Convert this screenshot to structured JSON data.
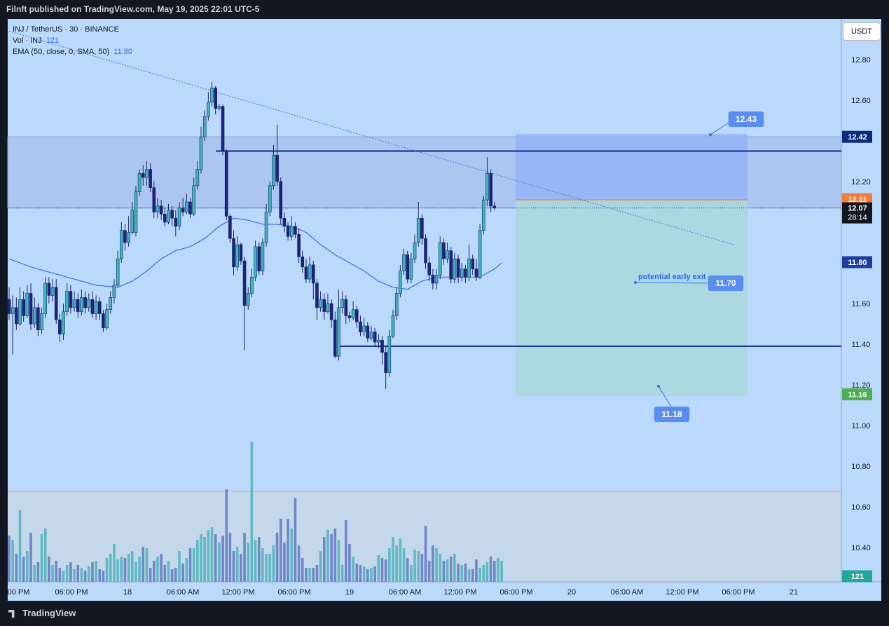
{
  "header": {
    "published": "Filnft published on TradingView.com, May 19, 2025 22:01 UTC-5"
  },
  "legend": {
    "symbol": "INJ / TetherUS · 30 · BINANCE",
    "vol_label": "Vol · INJ",
    "vol_value": "121",
    "ema_label": "EMA (50, close, 0, SMA, 50)",
    "ema_value": "11.80"
  },
  "currency_button": "USDT",
  "footer": {
    "brand": "TradingView"
  },
  "chart_data": {
    "type": "candlestick",
    "symbol": "INJ / TetherUS",
    "interval": "30",
    "exchange": "BINANCE",
    "y_axis": {
      "range": [
        10.26,
        13.04
      ],
      "ticks": [
        "12.80",
        "12.60",
        "12.20",
        "11.60",
        "11.40",
        "11.20",
        "11.00",
        "10.80",
        "10.60",
        "10.40"
      ]
    },
    "x_axis": {
      "ticks": [
        ":00 PM",
        "06:00 PM",
        "18",
        "06:00 AM",
        "12:00 PM",
        "06:00 PM",
        "19",
        "06:00 AM",
        "12:00 PM",
        "06:00 PM",
        "20",
        "06:00 AM",
        "12:00 PM",
        "06:00 PM",
        "21"
      ]
    },
    "price_labels": {
      "resistance": "12.42",
      "last_close_ref": "12.11",
      "current_price": "12.07",
      "countdown": "28:14",
      "ema": "11.80",
      "target_low": "11.16",
      "volume": "121"
    },
    "candles": [
      [
        11.62,
        11.55,
        11.68,
        11.52
      ],
      [
        11.55,
        11.58,
        11.64,
        11.35
      ],
      [
        11.58,
        11.5,
        11.63,
        11.47
      ],
      [
        11.5,
        11.62,
        11.68,
        11.49
      ],
      [
        11.62,
        11.54,
        11.66,
        11.51
      ],
      [
        11.54,
        11.65,
        11.69,
        11.53
      ],
      [
        11.65,
        11.5,
        11.7,
        11.47
      ],
      [
        11.5,
        11.58,
        11.63,
        11.48
      ],
      [
        11.58,
        11.47,
        11.6,
        11.44
      ],
      [
        11.47,
        11.55,
        11.58,
        11.45
      ],
      [
        11.55,
        11.7,
        11.73,
        11.53
      ],
      [
        11.7,
        11.64,
        11.73,
        11.6
      ],
      [
        11.64,
        11.68,
        11.72,
        11.61
      ],
      [
        11.68,
        11.52,
        11.72,
        11.5
      ],
      [
        11.52,
        11.45,
        11.55,
        11.41
      ],
      [
        11.45,
        11.56,
        11.6,
        11.42
      ],
      [
        11.56,
        11.66,
        11.7,
        11.54
      ],
      [
        11.66,
        11.58,
        11.69,
        11.55
      ],
      [
        11.58,
        11.62,
        11.66,
        11.56
      ],
      [
        11.62,
        11.56,
        11.65,
        11.53
      ],
      [
        11.56,
        11.63,
        11.67,
        11.54
      ],
      [
        11.63,
        11.58,
        11.66,
        11.55
      ],
      [
        11.58,
        11.62,
        11.65,
        11.56
      ],
      [
        11.62,
        11.55,
        11.66,
        11.53
      ],
      [
        11.55,
        11.61,
        11.64,
        11.52
      ],
      [
        11.61,
        11.55,
        11.63,
        11.52
      ],
      [
        11.55,
        11.48,
        11.57,
        11.46
      ],
      [
        11.48,
        11.57,
        11.6,
        11.47
      ],
      [
        11.57,
        11.63,
        11.66,
        11.55
      ],
      [
        11.63,
        11.69,
        11.72,
        11.6
      ],
      [
        11.69,
        11.82,
        11.86,
        11.68
      ],
      [
        11.82,
        11.96,
        12.0,
        11.8
      ],
      [
        11.96,
        11.9,
        11.99,
        11.86
      ],
      [
        11.9,
        11.95,
        12.03,
        11.88
      ],
      [
        11.95,
        12.06,
        12.1,
        11.94
      ],
      [
        11.95,
        12.15,
        12.18,
        11.93
      ],
      [
        12.15,
        12.24,
        12.26,
        12.13
      ],
      [
        12.24,
        12.22,
        12.28,
        12.18
      ],
      [
        12.22,
        12.26,
        12.3,
        12.18
      ],
      [
        12.26,
        12.17,
        12.29,
        12.15
      ],
      [
        12.17,
        12.05,
        12.2,
        12.02
      ],
      [
        12.05,
        12.08,
        12.12,
        12.02
      ],
      [
        12.08,
        12.04,
        12.11,
        12.01
      ],
      [
        12.04,
        12.0,
        12.07,
        11.98
      ],
      [
        12.0,
        12.06,
        12.09,
        11.99
      ],
      [
        12.06,
        12.02,
        12.08,
        11.98
      ],
      [
        12.02,
        11.98,
        12.06,
        11.93
      ],
      [
        11.98,
        12.07,
        12.1,
        11.96
      ],
      [
        12.07,
        12.05,
        12.12,
        12.03
      ],
      [
        12.05,
        12.1,
        12.14,
        12.04
      ],
      [
        12.1,
        12.04,
        12.12,
        12.02
      ],
      [
        12.04,
        12.18,
        12.22,
        12.03
      ],
      [
        12.18,
        12.26,
        12.3,
        12.16
      ],
      [
        12.26,
        12.42,
        12.47,
        12.24
      ],
      [
        12.42,
        12.52,
        12.55,
        12.4
      ],
      [
        12.52,
        12.59,
        12.64,
        12.5
      ],
      [
        12.59,
        12.66,
        12.69,
        12.57
      ],
      [
        12.66,
        12.56,
        12.67,
        12.53
      ],
      [
        12.56,
        12.57,
        12.58,
        12.55
      ],
      [
        12.57,
        12.35,
        12.58,
        12.33
      ],
      [
        12.35,
        12.03,
        12.36,
        12.01
      ],
      [
        12.03,
        11.92,
        12.04,
        11.9
      ],
      [
        11.92,
        11.78,
        11.96,
        11.74
      ],
      [
        11.78,
        11.89,
        11.93,
        11.76
      ],
      [
        11.89,
        11.81,
        11.9,
        11.79
      ],
      [
        11.81,
        11.59,
        11.83,
        11.37
      ],
      [
        11.59,
        11.65,
        11.68,
        11.57
      ],
      [
        11.65,
        11.73,
        11.77,
        11.63
      ],
      [
        11.73,
        11.88,
        11.91,
        11.71
      ],
      [
        11.88,
        11.76,
        11.9,
        11.74
      ],
      [
        11.76,
        11.9,
        11.92,
        11.74
      ],
      [
        11.9,
        12.05,
        12.09,
        11.88
      ],
      [
        12.05,
        12.18,
        12.2,
        12.03
      ],
      [
        12.18,
        12.33,
        12.38,
        12.16
      ],
      [
        12.33,
        12.2,
        12.48,
        12.18
      ],
      [
        12.2,
        12.02,
        12.22,
        11.99
      ],
      [
        12.02,
        11.98,
        12.05,
        11.95
      ],
      [
        11.98,
        11.93,
        12.0,
        11.91
      ],
      [
        11.93,
        11.98,
        12.03,
        11.91
      ],
      [
        11.98,
        11.94,
        12.0,
        11.92
      ],
      [
        11.94,
        11.83,
        11.97,
        11.8
      ],
      [
        11.83,
        11.78,
        11.86,
        11.75
      ],
      [
        11.78,
        11.72,
        11.82,
        11.7
      ],
      [
        11.72,
        11.79,
        11.83,
        11.7
      ],
      [
        11.79,
        11.7,
        11.81,
        11.62
      ],
      [
        11.7,
        11.58,
        11.72,
        11.52
      ],
      [
        11.58,
        11.62,
        11.66,
        11.56
      ],
      [
        11.62,
        11.56,
        11.65,
        11.52
      ],
      [
        11.56,
        11.6,
        11.65,
        11.55
      ],
      [
        11.6,
        11.52,
        11.62,
        11.48
      ],
      [
        11.52,
        11.34,
        11.56,
        11.33
      ],
      [
        11.34,
        11.58,
        11.67,
        11.32
      ],
      [
        11.58,
        11.62,
        11.66,
        11.55
      ],
      [
        11.62,
        11.54,
        11.64,
        11.5
      ],
      [
        11.54,
        11.53,
        11.56,
        11.51
      ],
      [
        11.53,
        11.57,
        11.61,
        11.52
      ],
      [
        11.57,
        11.51,
        11.59,
        11.48
      ],
      [
        11.51,
        11.46,
        11.54,
        11.44
      ],
      [
        11.46,
        11.49,
        11.53,
        11.44
      ],
      [
        11.49,
        11.43,
        11.51,
        11.41
      ],
      [
        11.43,
        11.46,
        11.49,
        11.42
      ],
      [
        11.46,
        11.41,
        11.48,
        11.39
      ],
      [
        11.41,
        11.42,
        11.45,
        11.38
      ],
      [
        11.42,
        11.36,
        11.44,
        11.3
      ],
      [
        11.36,
        11.26,
        11.39,
        11.18
      ],
      [
        11.26,
        11.44,
        11.47,
        11.24
      ],
      [
        11.44,
        11.54,
        11.57,
        11.43
      ],
      [
        11.54,
        11.65,
        11.68,
        11.52
      ],
      [
        11.65,
        11.76,
        11.79,
        11.63
      ],
      [
        11.76,
        11.84,
        11.87,
        11.74
      ],
      [
        11.84,
        11.72,
        11.86,
        11.7
      ],
      [
        11.72,
        11.82,
        11.85,
        11.7
      ],
      [
        11.82,
        11.9,
        11.94,
        11.8
      ],
      [
        11.9,
        12.02,
        12.1,
        11.88
      ],
      [
        12.02,
        11.92,
        12.04,
        11.89
      ],
      [
        11.92,
        11.8,
        11.94,
        11.77
      ],
      [
        11.8,
        11.74,
        11.83,
        11.71
      ],
      [
        11.74,
        11.7,
        11.77,
        11.67
      ],
      [
        11.7,
        11.74,
        11.77,
        11.67
      ],
      [
        11.74,
        11.9,
        11.93,
        11.72
      ],
      [
        11.9,
        11.82,
        11.92,
        11.79
      ],
      [
        11.82,
        11.86,
        11.9,
        11.8
      ],
      [
        11.86,
        11.72,
        11.88,
        11.7
      ],
      [
        11.72,
        11.82,
        11.85,
        11.7
      ],
      [
        11.82,
        11.73,
        11.84,
        11.7
      ],
      [
        11.73,
        11.77,
        11.8,
        11.71
      ],
      [
        11.77,
        11.73,
        11.79,
        11.7
      ],
      [
        11.73,
        11.82,
        11.89,
        11.71
      ],
      [
        11.82,
        11.77,
        11.84,
        11.74
      ],
      [
        11.77,
        11.73,
        11.82,
        11.71
      ],
      [
        11.73,
        11.96,
        11.99,
        11.72
      ],
      [
        11.96,
        12.11,
        12.13,
        11.94
      ],
      [
        12.11,
        12.24,
        12.32,
        12.08
      ],
      [
        12.24,
        12.08,
        12.26,
        12.05
      ],
      [
        12.08,
        12.07,
        12.1,
        12.06
      ]
    ],
    "volume": [
      33,
      30,
      20,
      51,
      18,
      22,
      35,
      12,
      14,
      34,
      38,
      18,
      12,
      15,
      10,
      8,
      12,
      14,
      9,
      12,
      10,
      8,
      11,
      14,
      15,
      9,
      8,
      17,
      20,
      27,
      16,
      18,
      17,
      20,
      22,
      14,
      18,
      25,
      24,
      10,
      15,
      18,
      20,
      12,
      15,
      9,
      10,
      22,
      13,
      17,
      24,
      24,
      30,
      34,
      32,
      37,
      39,
      34,
      28,
      33,
      66,
      35,
      22,
      25,
      20,
      35,
      28,
      100,
      30,
      32,
      24,
      20,
      20,
      26,
      35,
      45,
      28,
      45,
      38,
      60,
      26,
      17,
      10,
      10,
      10,
      12,
      22,
      32,
      37,
      34,
      38,
      30,
      12,
      44,
      27,
      18,
      13,
      12,
      11,
      9,
      10,
      11,
      19,
      17,
      16,
      24,
      32,
      26,
      31,
      24,
      17,
      12,
      23,
      22,
      20,
      40,
      15,
      26,
      24,
      20,
      15,
      16,
      18,
      20,
      13,
      12,
      13,
      9,
      9,
      16,
      10,
      12,
      14,
      18,
      15,
      17,
      15
    ],
    "ema_50": [
      [
        0,
        11.82
      ],
      [
        6,
        11.78
      ],
      [
        12,
        11.75
      ],
      [
        18,
        11.72
      ],
      [
        24,
        11.69
      ],
      [
        30,
        11.68
      ],
      [
        34,
        11.71
      ],
      [
        38,
        11.76
      ],
      [
        42,
        11.82
      ],
      [
        46,
        11.86
      ],
      [
        50,
        11.88
      ],
      [
        54,
        11.92
      ],
      [
        58,
        11.98
      ],
      [
        62,
        12.02
      ],
      [
        66,
        12.01
      ],
      [
        70,
        11.99
      ],
      [
        74,
        11.99
      ],
      [
        78,
        11.98
      ],
      [
        82,
        11.95
      ],
      [
        86,
        11.89
      ],
      [
        90,
        11.84
      ],
      [
        94,
        11.8
      ],
      [
        98,
        11.76
      ],
      [
        102,
        11.71
      ],
      [
        106,
        11.68
      ],
      [
        110,
        11.67
      ],
      [
        114,
        11.71
      ],
      [
        118,
        11.73
      ],
      [
        122,
        11.73
      ],
      [
        126,
        11.73
      ],
      [
        130,
        11.73
      ],
      [
        134,
        11.77
      ],
      [
        136,
        11.8
      ]
    ],
    "levels": [
      {
        "price": 12.35,
        "from": 54,
        "to": null,
        "style": "solid"
      },
      {
        "price": 11.39,
        "from": 88,
        "to": null,
        "style": "solid"
      }
    ],
    "trendline": {
      "from": [
        0,
        12.94
      ],
      "to": [
        200,
        11.89
      ],
      "style": "dotted"
    },
    "zone": {
      "top": 12.42,
      "bottom": 12.07,
      "from": 0,
      "style": "shaded"
    },
    "position": {
      "entry": 12.11,
      "target_top": 12.42,
      "stop_bottom": 11.16,
      "labels": [
        {
          "text": "12.43",
          "price": 12.43
        },
        {
          "text": "potential early exit",
          "price": 11.7
        },
        {
          "text": "11.70",
          "price": 11.7
        },
        {
          "text": "11.18",
          "price": 11.18
        }
      ]
    }
  }
}
